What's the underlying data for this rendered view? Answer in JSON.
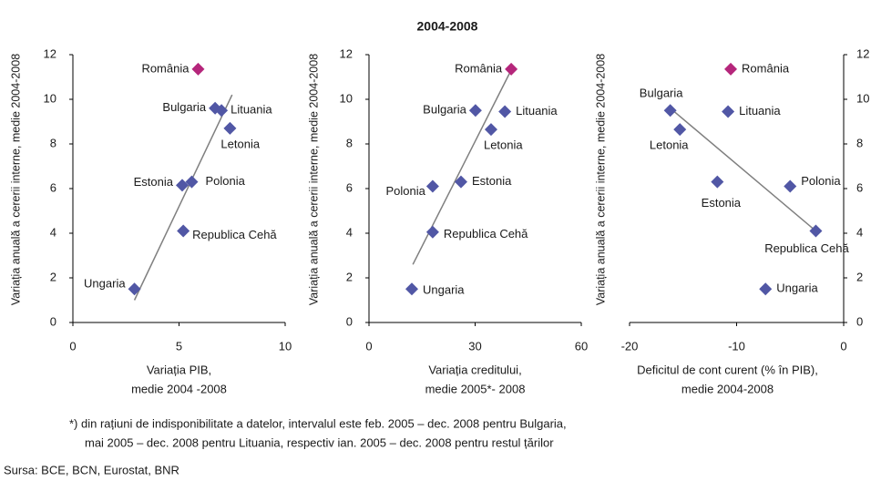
{
  "title": "2004-2008",
  "footnote": [
    "*) din rațiuni de indisponibilitate a datelor, intervalul este feb. 2005 – dec. 2008 pentru Bulgaria,",
    "mai 2005 – dec. 2008 pentru Lituania, respectiv ian. 2005 – dec. 2008 pentru restul țărilor"
  ],
  "source": "Sursa: BCE, BCN, Eurostat, BNR",
  "chart_data": [
    {
      "type": "scatter",
      "ylabel": "Variația anuală a cererii interne, medie 2004-2008",
      "xlabel": [
        "Variația PIB,",
        "medie 2004 -2008"
      ],
      "labels": [
        "România",
        "Bulgaria",
        "Lituania",
        "Letonia",
        "Estonia",
        "Polonia",
        "Republica Cehă",
        "Ungaria"
      ],
      "x": [
        5.9,
        6.7,
        7.0,
        7.4,
        5.15,
        5.6,
        5.2,
        2.9
      ],
      "y": [
        11.35,
        9.6,
        9.5,
        8.7,
        6.15,
        6.3,
        4.1,
        1.5
      ],
      "colors": [
        "#b5267b",
        "#5157a5",
        "#5157a5",
        "#5157a5",
        "#5157a5",
        "#5157a5",
        "#5157a5",
        "#5157a5"
      ],
      "trend": {
        "x": [
          2.9,
          7.5
        ],
        "y": [
          1.0,
          10.2
        ],
        "color": "#7f7f7f"
      },
      "xlim": [
        0,
        10
      ],
      "xticks": [
        0,
        5,
        10
      ],
      "ylim": [
        0,
        12
      ],
      "yticks": [
        0,
        2,
        4,
        6,
        8,
        10,
        12
      ],
      "yaxis_side": "left"
    },
    {
      "type": "scatter",
      "ylabel": "Variația anuală a cererii interne, medie 2004-2008",
      "xlabel": [
        "Variația creditului,",
        "medie 2005*- 2008"
      ],
      "labels": [
        "România",
        "Bulgaria",
        "Lituania",
        "Letonia",
        "Estonia",
        "Polonia",
        "Republica Cehă",
        "Ungaria"
      ],
      "x": [
        40.2,
        30.1,
        38.4,
        34.5,
        26,
        18,
        18,
        12.1
      ],
      "y": [
        11.35,
        9.5,
        9.45,
        8.65,
        6.3,
        6.1,
        4.05,
        1.5
      ],
      "colors": [
        "#b5267b",
        "#5157a5",
        "#5157a5",
        "#5157a5",
        "#5157a5",
        "#5157a5",
        "#5157a5",
        "#5157a5"
      ],
      "trend": {
        "x": [
          12.4,
          40
        ],
        "y": [
          2.6,
          11.25
        ],
        "color": "#7f7f7f"
      },
      "xlim": [
        0,
        60
      ],
      "xticks": [
        0,
        30,
        60
      ],
      "ylim": [
        0,
        12
      ],
      "yticks": [
        0,
        2,
        4,
        6,
        8,
        10,
        12
      ],
      "yaxis_side": "left"
    },
    {
      "type": "scatter",
      "ylabel": "Variația anuală a cererii interne, medie 2004-2008",
      "xlabel": [
        "Deficitul de cont curent (% în PIB),",
        "medie 2004-2008"
      ],
      "labels": [
        "România",
        "Bulgaria",
        "Lituania",
        "Letonia",
        "Estonia",
        "Polonia",
        "Republica Cehă",
        "Ungaria"
      ],
      "x": [
        -10.55,
        -16.2,
        -10.8,
        -15.3,
        -11.8,
        -5.0,
        -2.6,
        -7.3
      ],
      "y": [
        11.35,
        9.5,
        9.45,
        8.65,
        6.3,
        6.1,
        4.1,
        1.5
      ],
      "colors": [
        "#b5267b",
        "#5157a5",
        "#5157a5",
        "#5157a5",
        "#5157a5",
        "#5157a5",
        "#5157a5",
        "#5157a5"
      ],
      "trend": {
        "x": [
          -16.2,
          -2.6
        ],
        "y": [
          9.6,
          4.1
        ],
        "color": "#7f7f7f"
      },
      "xlim": [
        -20,
        0
      ],
      "xticks": [
        -20,
        -10,
        0
      ],
      "ylim": [
        0,
        12
      ],
      "yticks": [
        0,
        2,
        4,
        6,
        8,
        10,
        12
      ],
      "yaxis_side": "right"
    }
  ]
}
